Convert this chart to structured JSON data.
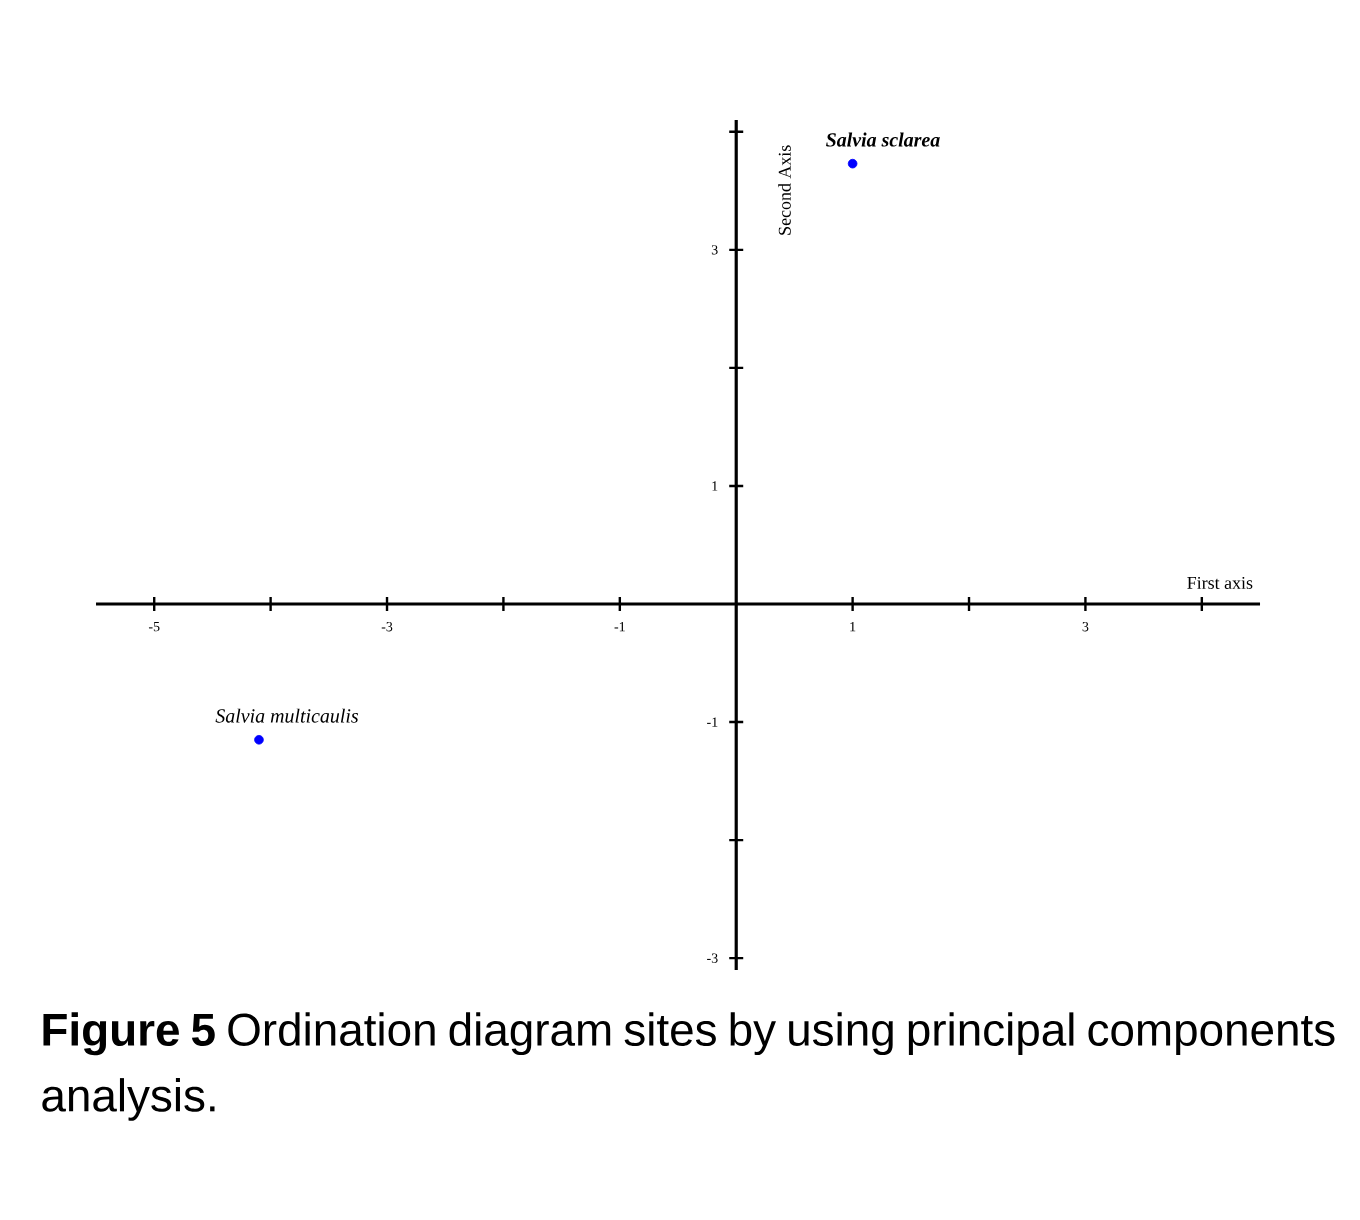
{
  "chart_data": {
    "type": "scatter",
    "xlabel": "First axis",
    "ylabel": "Second Axis",
    "series": [
      {
        "color": "#0000ff",
        "x": [
          1.0,
          -4.1
        ],
        "values": [
          3.73,
          -1.15
        ]
      }
    ],
    "xlim": [
      -5.5,
      4.5
    ],
    "ylim": [
      -3.1,
      4.1
    ],
    "xticks": [
      -5,
      {
        "value": -4,
        "label": null
      },
      -3,
      {
        "value": -2,
        "label": null
      },
      -1,
      {
        "value": 0,
        "label": null
      },
      1,
      {
        "value": 2,
        "label": null
      },
      3,
      {
        "value": 4,
        "label": null
      }
    ],
    "yticks": [
      -3,
      {
        "value": -2,
        "label": null
      },
      -1,
      {
        "value": 0,
        "label": null
      },
      1,
      {
        "value": 2,
        "label": null
      },
      3,
      {
        "value": 4,
        "label": null
      }
    ],
    "marker": "circle",
    "annotations": [
      {
        "text": "Salvia sclarea",
        "x": 1.0,
        "y": 3.73
      },
      {
        "text": "Salvia multicaulis",
        "x": -4.1,
        "y": -1.15
      },
      "**Figure 5** Ordination diagram sites by using principal components analysis."
    ]
  }
}
